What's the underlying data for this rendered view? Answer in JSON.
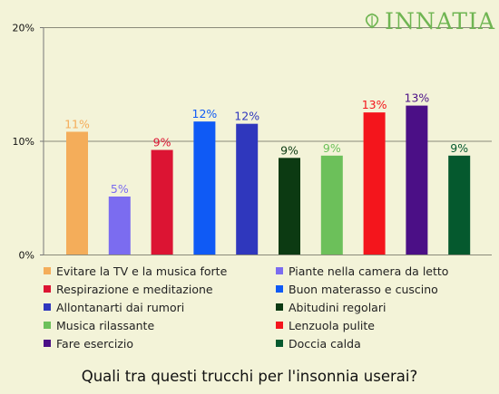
{
  "brand": {
    "name": "INNATIA",
    "color": "#6fb552"
  },
  "question": "Quali tra questi trucchi per l'insonnia userai?",
  "chart_data": {
    "type": "bar",
    "title": "",
    "xlabel": "",
    "ylabel": "",
    "ylim": [
      0,
      20
    ],
    "yticks": [
      0,
      10,
      20
    ],
    "ytick_labels": [
      "0%",
      "10%",
      "20%"
    ],
    "grid": true,
    "legend_position": "bottom",
    "categories": [
      "Evitare la TV e la musica forte",
      "Piante nella camera da letto",
      "Respirazione e meditazione",
      "Buon materasso e cuscino",
      "Allontanarti dai rumori",
      "Abitudini regolari",
      "Musica rilassante",
      "Lenzuola pulite",
      "Fare esercizio",
      "Doccia calda"
    ],
    "values": [
      10.8,
      5.1,
      9.2,
      11.7,
      11.5,
      8.5,
      8.7,
      12.5,
      13.1,
      8.7
    ],
    "labels": [
      "11%",
      "5%",
      "9%",
      "12%",
      "12%",
      "9%",
      "9%",
      "13%",
      "13%",
      "9%"
    ],
    "colors": [
      "#f4ad5a",
      "#7b6cf0",
      "#dc1433",
      "#0f5af5",
      "#2f37bd",
      "#0c3a12",
      "#6cc05a",
      "#f4151c",
      "#4b0f86",
      "#05592e"
    ]
  }
}
